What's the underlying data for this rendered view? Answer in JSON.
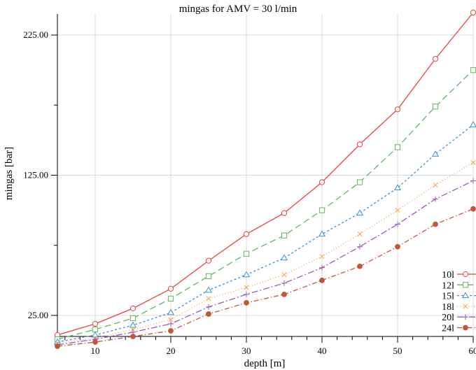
{
  "chart_data": {
    "type": "line",
    "title": "mingas for AMV = 30 l/min",
    "xlabel": "depth [m]",
    "ylabel": "mingas [bar]",
    "xlim": [
      5,
      60
    ],
    "ylim": [
      10,
      240
    ],
    "x_ticks": [
      10,
      20,
      30,
      40,
      50,
      60
    ],
    "x_minor_step": 2,
    "y_ticks": [
      25,
      125,
      225
    ],
    "y_tick_labels": [
      "25.00",
      "125.00",
      "225.00"
    ],
    "y_minor_ticks": [
      75,
      175
    ],
    "grid": true,
    "legend_position": "bottom-right",
    "x": [
      5,
      10,
      15,
      20,
      25,
      30,
      35,
      40,
      45,
      50,
      55,
      60
    ],
    "series": [
      {
        "name": "10l",
        "color": "#e8423f",
        "dash": "",
        "marker": "circle-open",
        "values": [
          11,
          19,
          30,
          44,
          64,
          83,
          98,
          120,
          147,
          172,
          208,
          241
        ]
      },
      {
        "name": "12l",
        "color": "#5cb85c",
        "dash": "9,5",
        "marker": "square-open",
        "values": [
          8,
          15,
          23,
          37,
          53,
          69,
          82,
          100,
          120,
          145,
          174,
          200
        ]
      },
      {
        "name": "15l",
        "color": "#3a8fd8",
        "dash": "3,3",
        "marker": "triangle-open",
        "values": [
          6,
          11,
          18,
          27,
          43,
          54,
          66,
          83,
          98,
          116,
          140,
          161
        ]
      },
      {
        "name": "18l",
        "color": "#f5a34a",
        "dash": "1,3",
        "marker": "x",
        "values": [
          5,
          9,
          15,
          22,
          37,
          45,
          54,
          67,
          83,
          100,
          118,
          134
        ]
      },
      {
        "name": "20l",
        "color": "#9b59b6",
        "dash": "9,3,2,3",
        "marker": "plus",
        "values": [
          4,
          8,
          13,
          19,
          31,
          40,
          48,
          59,
          74,
          90,
          108,
          121
        ]
      },
      {
        "name": "24l",
        "color": "#c0573c",
        "dash": "7,3,1.5,3",
        "marker": "circle-filled",
        "values": [
          3,
          6,
          10,
          14,
          26,
          34,
          40,
          50,
          60,
          74,
          90,
          101
        ]
      }
    ]
  }
}
